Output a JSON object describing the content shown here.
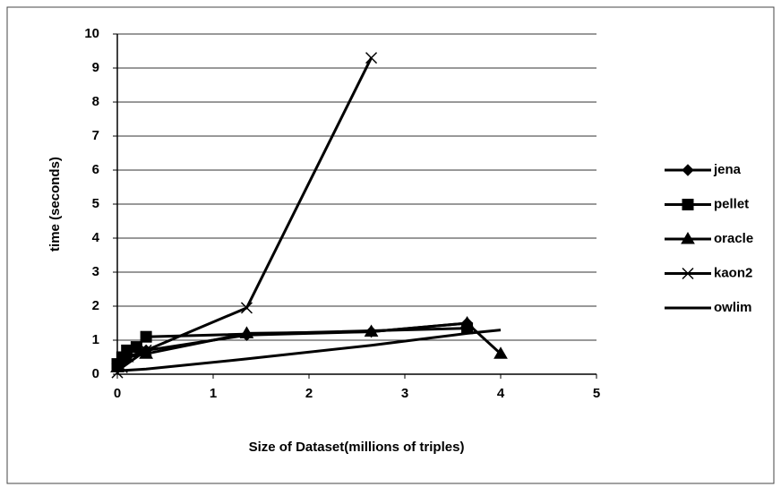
{
  "chart_data": {
    "type": "line",
    "xlabel": "Size of Dataset(millions  of  triples)",
    "ylabel": "time (seconds)",
    "xlim": [
      0,
      5
    ],
    "xticks": [
      0,
      1,
      2,
      3,
      4,
      5
    ],
    "ylim": [
      0,
      10
    ],
    "yticks": [
      0,
      1,
      2,
      3,
      4,
      5,
      6,
      7,
      8,
      9,
      10
    ],
    "grid": true,
    "legend": "right",
    "series": [
      {
        "name": "jena",
        "color": "#000000",
        "marker": "diamond",
        "x": [
          0,
          0.05,
          0.1,
          0.3,
          1.35,
          2.65,
          3.65
        ],
        "values": [
          0.3,
          0.4,
          0.5,
          0.7,
          1.15,
          1.25,
          1.5
        ]
      },
      {
        "name": "pellet",
        "color": "#000000",
        "marker": "square",
        "x": [
          0,
          0.05,
          0.1,
          0.2,
          0.3,
          3.65
        ],
        "values": [
          0.3,
          0.5,
          0.7,
          0.8,
          1.1,
          1.35
        ]
      },
      {
        "name": "oracle",
        "color": "#000000",
        "marker": "triangle",
        "x": [
          0,
          0.1,
          0.3,
          1.35,
          2.65,
          3.65,
          4.0
        ],
        "values": [
          0.2,
          0.5,
          0.6,
          1.2,
          1.25,
          1.5,
          0.6
        ]
      },
      {
        "name": "kaon2",
        "color": "#000000",
        "marker": "x",
        "x": [
          0,
          0.05,
          0.3,
          1.35,
          2.65
        ],
        "values": [
          0.05,
          0.2,
          0.7,
          1.95,
          9.3
        ]
      },
      {
        "name": "owlim",
        "color": "#000000",
        "marker": "none",
        "x": [
          0,
          0.3,
          1.35,
          2.65,
          3.65,
          4.0
        ],
        "values": [
          0.1,
          0.15,
          0.45,
          0.85,
          1.2,
          1.3
        ]
      }
    ]
  }
}
